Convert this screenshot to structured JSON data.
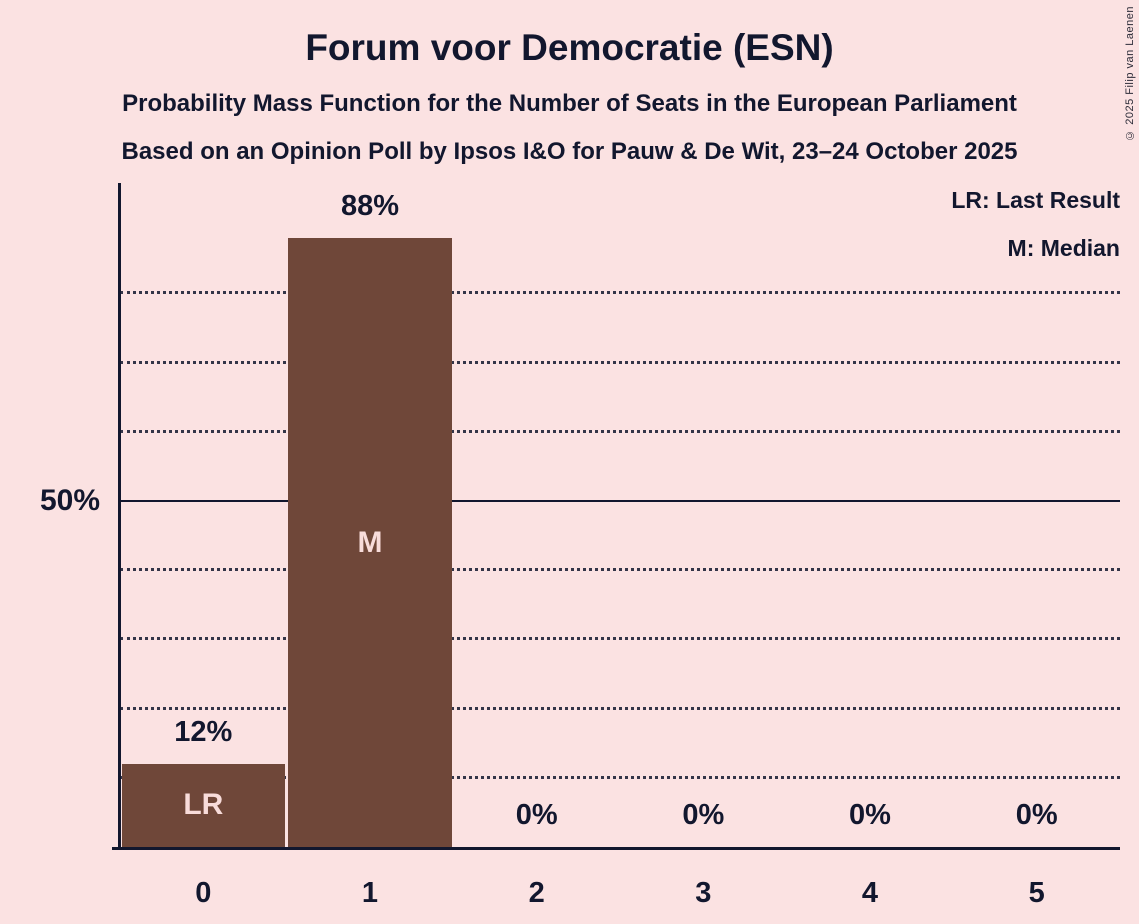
{
  "header": {
    "title": "Forum voor Democratie (ESN)",
    "subtitle": "Probability Mass Function for the Number of Seats in the European Parliament",
    "source_line": "Based on an Opinion Poll by Ipsos I&O for Pauw & De Wit, 23–24 October 2025"
  },
  "legend": {
    "last_result": "LR: Last Result",
    "median": "M: Median"
  },
  "copyright": "© 2025 Filip van Laenen",
  "colors": {
    "background": "#fbe2e2",
    "bar": "#6f4739",
    "text": "#12172e",
    "bar_label": "#f8dcda"
  },
  "y_axis": {
    "label": "50%",
    "label_value": 50
  },
  "chart_data": {
    "type": "bar",
    "title": "Forum voor Democratie (ESN)",
    "categories": [
      "0",
      "1",
      "2",
      "3",
      "4",
      "5"
    ],
    "values": [
      12,
      88,
      0,
      0,
      0,
      0
    ],
    "value_labels": [
      "12%",
      "88%",
      "0%",
      "0%",
      "0%",
      "0%"
    ],
    "markers": [
      {
        "index": 0,
        "label": "LR"
      },
      {
        "index": 1,
        "label": "M"
      }
    ],
    "xlabel": "",
    "ylabel": "",
    "ylim": [
      0,
      96
    ],
    "gridlines_pct": [
      10,
      20,
      30,
      40,
      60,
      70,
      80
    ],
    "solid_line_pct": 50,
    "grid": true,
    "legend_position": "top-right"
  }
}
